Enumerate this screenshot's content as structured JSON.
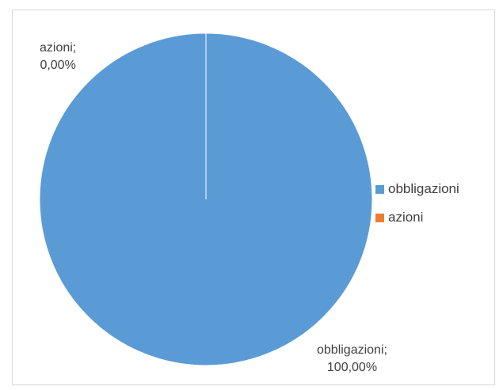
{
  "chart_data": {
    "type": "pie",
    "categories": [
      "obbligazioni",
      "azioni"
    ],
    "values": [
      100.0,
      0.0
    ],
    "colors": [
      "#5B9BD5",
      "#ED7D31"
    ],
    "data_labels": [
      {
        "name": "obbligazioni;",
        "value": "100,00%"
      },
      {
        "name": "azioni;",
        "value": "0,00%"
      }
    ],
    "legend": {
      "placement": "right",
      "entries": [
        "obbligazioni",
        "azioni"
      ]
    },
    "title": ""
  }
}
